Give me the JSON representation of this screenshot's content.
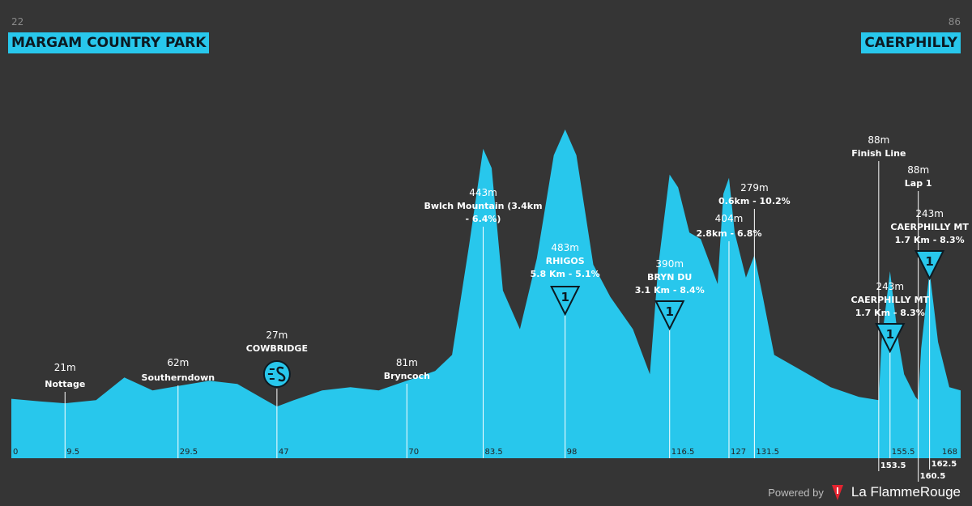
{
  "header": {
    "start_alt": "22",
    "start_place": "MARGAM COUNTRY PARK",
    "finish_alt": "86",
    "finish_place": "CAERPHILLY"
  },
  "footer": {
    "powered_by": "Powered by",
    "brand": "La FlammeRouge"
  },
  "colors": {
    "background": "#353535",
    "profile_fill": "#28c7ec",
    "label_text": "#ffffff",
    "box_text": "#0c1a22"
  },
  "chart_data": {
    "type": "area",
    "xlim": [
      0,
      168
    ],
    "x_ticks": [
      "0",
      "9.5",
      "29.5",
      "47",
      "70",
      "83.5",
      "98",
      "116.5",
      "127",
      "131.5",
      "155.5",
      "168"
    ],
    "x_ticks_low": [
      "153.5",
      "160.5",
      "162.5"
    ],
    "profile": [
      [
        0,
        42
      ],
      [
        5,
        38
      ],
      [
        9.5,
        35
      ],
      [
        15,
        40
      ],
      [
        20,
        75
      ],
      [
        25,
        55
      ],
      [
        29.5,
        62
      ],
      [
        35,
        70
      ],
      [
        40,
        65
      ],
      [
        45,
        40
      ],
      [
        47,
        30
      ],
      [
        50,
        40
      ],
      [
        55,
        55
      ],
      [
        60,
        60
      ],
      [
        65,
        55
      ],
      [
        70,
        70
      ],
      [
        75,
        85
      ],
      [
        78,
        110
      ],
      [
        81,
        280
      ],
      [
        83.5,
        430
      ],
      [
        85,
        400
      ],
      [
        87,
        210
      ],
      [
        90,
        150
      ],
      [
        93,
        260
      ],
      [
        96,
        420
      ],
      [
        98,
        460
      ],
      [
        100,
        420
      ],
      [
        103,
        250
      ],
      [
        106,
        200
      ],
      [
        110,
        150
      ],
      [
        113,
        80
      ],
      [
        114.5,
        250
      ],
      [
        116.5,
        390
      ],
      [
        118,
        370
      ],
      [
        120,
        300
      ],
      [
        122,
        290
      ],
      [
        125,
        220
      ],
      [
        126,
        360
      ],
      [
        127,
        385
      ],
      [
        128,
        300
      ],
      [
        130,
        230
      ],
      [
        131.5,
        265
      ],
      [
        133,
        200
      ],
      [
        135,
        110
      ],
      [
        140,
        85
      ],
      [
        145,
        60
      ],
      [
        150,
        45
      ],
      [
        153.5,
        40
      ],
      [
        154,
        130
      ],
      [
        155.5,
        240
      ],
      [
        157,
        130
      ],
      [
        158,
        80
      ],
      [
        160,
        45
      ],
      [
        160.5,
        40
      ],
      [
        161,
        120
      ],
      [
        162.5,
        240
      ],
      [
        164,
        130
      ],
      [
        166,
        60
      ],
      [
        168,
        55
      ]
    ],
    "markers": [
      {
        "km": 9.5,
        "top_alt": "21m",
        "name": "Nottage"
      },
      {
        "km": 29.5,
        "top_alt": "62m",
        "name": "Southerndown"
      },
      {
        "km": 47,
        "top_alt": "27m",
        "name": "COWBRIDGE",
        "icon": "sprint-icon"
      },
      {
        "km": 70,
        "top_alt": "81m",
        "name": "Bryncoch"
      },
      {
        "km": 83.5,
        "top_alt": "443m",
        "name": "Bwlch Mountain (3.4km",
        "name2": "- 6.4%)"
      },
      {
        "km": 98,
        "top_alt": "483m",
        "name": "RHIGOS",
        "name2": "5.8 Km - 5.1%",
        "icon": "kom-icon",
        "icon_label": "1"
      },
      {
        "km": 116.5,
        "top_alt": "390m",
        "name": "BRYN DU",
        "name2": "3.1 Km - 8.4%",
        "icon": "kom-icon",
        "icon_label": "1"
      },
      {
        "km": 127,
        "top_alt": "404m",
        "name": "2.8km - 6.8%"
      },
      {
        "km": 131.5,
        "top_alt": "279m",
        "name": "0.6km - 10.2%"
      },
      {
        "km": 153.5,
        "top_alt": "88m",
        "name": "Finish Line"
      },
      {
        "km": 155.5,
        "top_alt": "243m",
        "name": "CAERPHILLY MT",
        "name2": "1.7 Km - 8.3%",
        "icon": "kom-icon",
        "icon_label": "1"
      },
      {
        "km": 160.5,
        "top_alt": "88m",
        "name": "Lap 1"
      },
      {
        "km": 162.5,
        "top_alt": "243m",
        "name": "CAERPHILLY MT",
        "name2": "1.7 Km - 8.3%",
        "icon": "kom-icon",
        "icon_label": "1"
      }
    ]
  }
}
